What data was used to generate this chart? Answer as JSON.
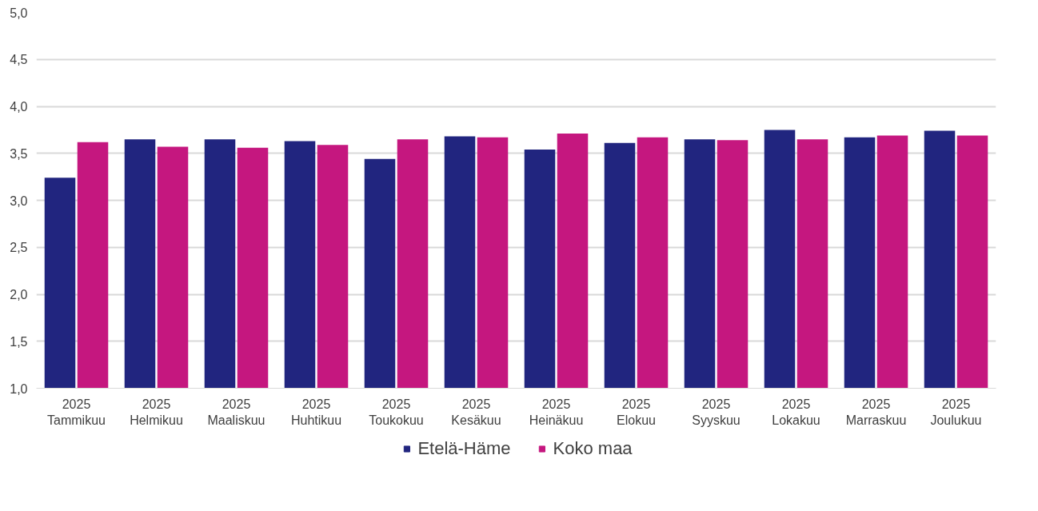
{
  "chart_data": {
    "type": "bar",
    "categories": [
      "2025\nTammikuu",
      "2025\nHelmikuu",
      "2025\nMaaliskuu",
      "2025\nHuhtikuu",
      "2025\nToukokuu",
      "2025\nKesäkuu",
      "2025\nHeinäkuu",
      "2025\nElokuu",
      "2025\nSyyskuu",
      "2025\nLokakuu",
      "2025\nMarraskuu",
      "2025\nJoulukuu"
    ],
    "series": [
      {
        "name": "Etelä-Häme",
        "color": "#21257f",
        "values": [
          3.24,
          3.65,
          3.65,
          3.63,
          3.44,
          3.68,
          3.54,
          3.61,
          3.65,
          3.75,
          3.67,
          3.74
        ]
      },
      {
        "name": "Koko maa",
        "color": "#c5177f",
        "values": [
          3.62,
          3.57,
          3.56,
          3.59,
          3.65,
          3.67,
          3.71,
          3.67,
          3.64,
          3.65,
          3.69,
          3.69
        ]
      }
    ],
    "ylim": [
      1,
      5
    ],
    "yticks": [
      {
        "value": 1,
        "label": "1,0"
      },
      {
        "value": 1.5,
        "label": "1,5"
      },
      {
        "value": 2,
        "label": "2,0"
      },
      {
        "value": 2.5,
        "label": "2,5"
      },
      {
        "value": 3,
        "label": "3,0"
      },
      {
        "value": 3.5,
        "label": "3,5"
      },
      {
        "value": 4,
        "label": "4,0"
      },
      {
        "value": 4.5,
        "label": "4,5"
      },
      {
        "value": 5,
        "label": "5,0"
      }
    ],
    "grid": "y",
    "legend": "bottom"
  }
}
